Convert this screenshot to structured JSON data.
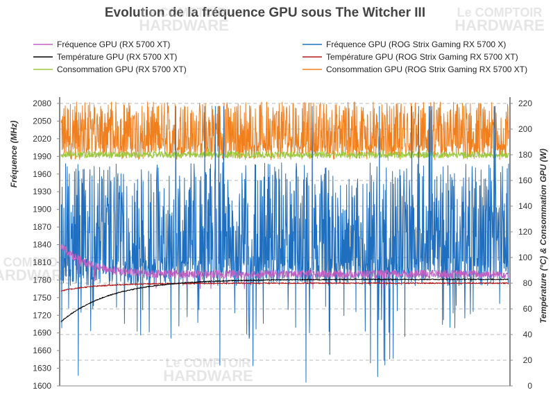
{
  "chart_data": {
    "type": "line",
    "title": "Evolution de la fréquence GPU sous The Witcher III",
    "ylabel_left": "Fréquence (MHz)",
    "ylabel_right": "Température (°C) & Consommation GPU (W)",
    "ylim_left": [
      1600,
      2080
    ],
    "ylim_right": [
      0,
      220
    ],
    "yticks_left": [
      1600,
      1630,
      1660,
      1690,
      1720,
      1750,
      1780,
      1810,
      1840,
      1870,
      1900,
      1930,
      1960,
      1990,
      2020,
      2050,
      2080
    ],
    "yticks_right": [
      0,
      20,
      40,
      60,
      80,
      100,
      120,
      140,
      160,
      180,
      200,
      220
    ],
    "x_samples": 1300,
    "grid": true,
    "series": [
      {
        "name": "Fréquence GPU (RX 5700 XT)",
        "axis": "left",
        "color": "#c060c0",
        "values_desc": "starts ~1840 MHz, settles ~1785–1800 MHz"
      },
      {
        "name": "Fréquence GPU (ROG Strix Gaming RX 5700 X)",
        "axis": "right_freq",
        "color": "#1f6fc0",
        "values_desc": "oscillates ~1760–1980 MHz, spikes to 2080, dips to 1600"
      },
      {
        "name": "Température GPU  (RX 5700 XT)",
        "axis": "right",
        "color": "#000000",
        "values_desc": "rises from ~50 °C to ~83 °C"
      },
      {
        "name": "Température GPU (ROG Strix Gaming RX 5700 XT)",
        "axis": "right",
        "color": "#b01818",
        "values_desc": "rises from ~74 °C to ~80 °C"
      },
      {
        "name": "Consommation GPU (RX 5700 XT)",
        "axis": "right",
        "color": "#9bc83c",
        "values_desc": "~180 W"
      },
      {
        "name": "Consommation GPU (ROG Strix Gaming RX 5700 XT)",
        "axis": "right",
        "color": "#f07f1e",
        "values_desc": "oscillates ~175–220 W"
      }
    ],
    "watermark": [
      "Le COMPTOIR",
      "HARDWARE"
    ]
  }
}
